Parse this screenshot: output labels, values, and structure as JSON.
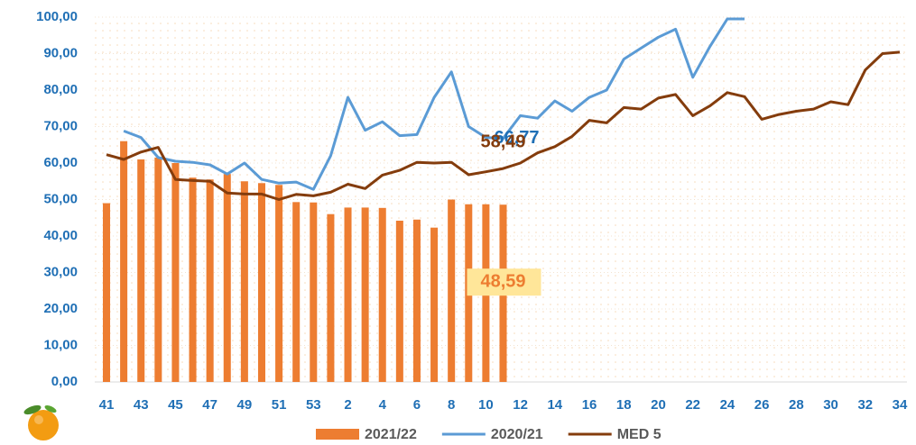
{
  "chart_data": {
    "type": "bar-line",
    "categories": [
      "41",
      null,
      "43",
      null,
      "45",
      null,
      "47",
      null,
      "49",
      null,
      "51",
      null,
      "53",
      null,
      "2",
      null,
      "4",
      null,
      "6",
      null,
      "8",
      null,
      "10",
      null,
      "12",
      null,
      "14",
      null,
      "16",
      null,
      "18",
      null,
      "20",
      null,
      "22",
      null,
      "24",
      null,
      "26",
      null,
      "28",
      null,
      "30",
      null,
      "32",
      null,
      "34"
    ],
    "series": [
      {
        "name": "2021/22",
        "type": "bar",
        "color": "#ed7d31",
        "values": [
          49,
          66,
          61,
          61.5,
          60,
          56,
          55.5,
          57,
          55,
          54.5,
          54,
          49.3,
          49.2,
          46,
          47.8,
          47.8,
          47.7,
          44.2,
          44.5,
          42.3,
          50,
          48.7,
          48.7,
          48.59,
          null,
          null,
          null,
          null,
          null,
          null,
          null,
          null,
          null,
          null,
          null,
          null,
          null,
          null,
          null,
          null,
          null,
          null,
          null,
          null,
          null,
          null,
          null
        ],
        "value_labels": [
          null,
          null,
          null,
          null,
          null,
          null,
          null,
          null,
          null,
          null,
          null,
          null,
          null,
          null,
          null,
          null,
          null,
          null,
          null,
          null,
          null,
          null,
          null,
          "48,59",
          null,
          null,
          null,
          null,
          null,
          null,
          null,
          null,
          null,
          null,
          null,
          null,
          null,
          null,
          null,
          null,
          null,
          null,
          null,
          null,
          null,
          null,
          null
        ]
      },
      {
        "name": "2020/21",
        "type": "line",
        "color": "#5b9bd5",
        "values": [
          null,
          68.8,
          67,
          61.5,
          60.5,
          60.2,
          59.5,
          57,
          60,
          55.5,
          54.5,
          54.8,
          52.8,
          62,
          78,
          69,
          71.3,
          67.5,
          67.8,
          78,
          85,
          70,
          67,
          66.77,
          73,
          72.3,
          77,
          74.2,
          78,
          80,
          88.5,
          91.5,
          94.5,
          96.7,
          83.5,
          92,
          99.5,
          99.5,
          null,
          null,
          null,
          null,
          null,
          null,
          null,
          null,
          null
        ],
        "value_labels": [
          null,
          null,
          null,
          null,
          null,
          null,
          null,
          null,
          null,
          null,
          null,
          null,
          null,
          null,
          null,
          null,
          null,
          null,
          null,
          null,
          null,
          null,
          null,
          "66,77",
          null,
          null,
          null,
          null,
          null,
          null,
          null,
          null,
          null,
          null,
          null,
          null,
          null,
          null,
          null,
          null,
          null,
          null,
          null,
          null,
          null,
          null,
          null
        ]
      },
      {
        "name": "MED 5",
        "type": "line",
        "color": "#843c0c",
        "values": [
          62.3,
          61,
          63,
          64.3,
          55.5,
          55.2,
          55,
          51.8,
          51.5,
          51.5,
          50,
          51.4,
          51,
          52,
          54.2,
          53,
          56.7,
          58,
          60.2,
          60,
          60.2,
          56.8,
          57.6,
          58.49,
          60,
          62.8,
          64.5,
          67.3,
          71.7,
          71,
          75.2,
          74.8,
          77.8,
          78.8,
          73,
          75.7,
          79.3,
          78.2,
          72,
          73.3,
          74.2,
          74.8,
          76.8,
          76,
          85.5,
          90,
          90.4
        ],
        "value_labels": [
          null,
          null,
          null,
          null,
          null,
          null,
          null,
          null,
          null,
          null,
          null,
          null,
          null,
          null,
          null,
          null,
          null,
          null,
          null,
          null,
          null,
          null,
          null,
          "58,49",
          null,
          null,
          null,
          null,
          null,
          null,
          null,
          null,
          null,
          null,
          null,
          null,
          null,
          null,
          null,
          null,
          null,
          null,
          null,
          null,
          null,
          null,
          null
        ]
      }
    ],
    "ylim": [
      0,
      100
    ],
    "yticks": [
      {
        "value": 0,
        "label": "0,00"
      },
      {
        "value": 10,
        "label": "10,00"
      },
      {
        "value": 20,
        "label": "20,00"
      },
      {
        "value": 30,
        "label": "30,00"
      },
      {
        "value": 40,
        "label": "40,00"
      },
      {
        "value": 50,
        "label": "50,00"
      },
      {
        "value": 60,
        "label": "60,00"
      },
      {
        "value": 70,
        "label": "70,00"
      },
      {
        "value": 80,
        "label": "80,00"
      },
      {
        "value": 90,
        "label": "90,00"
      },
      {
        "value": 100,
        "label": "100,00"
      }
    ],
    "grid": true,
    "legend": "bottom"
  }
}
